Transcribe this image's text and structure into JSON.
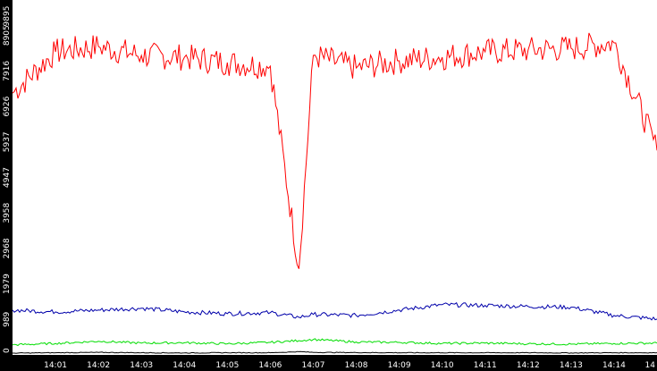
{
  "chart_data": {
    "type": "line",
    "title": "",
    "xlabel": "",
    "ylabel": "",
    "grid": false,
    "legend": "none",
    "background_color": "#000000",
    "plot_background_color": "#ffffff",
    "axis_text_color": "#ffffff",
    "ylim": [
      0,
      9895
    ],
    "yticks": [
      "0",
      "989",
      "1979",
      "2968",
      "3958",
      "4947",
      "5937",
      "6926",
      "7916",
      "8905",
      "9895"
    ],
    "xlim": [
      "14:00",
      "14:15"
    ],
    "xticks": [
      "14:01",
      "14:02",
      "14:03",
      "14:04",
      "14:05",
      "14:06",
      "14:07",
      "14:08",
      "14:09",
      "14:10",
      "14:11",
      "14:12",
      "14:13",
      "14:14",
      "14"
    ],
    "x": [
      "14:00",
      "14:01",
      "14:02",
      "14:03",
      "14:04",
      "14:05",
      "14:06",
      "14:06:40",
      "14:07",
      "14:08",
      "14:09",
      "14:10",
      "14:11",
      "14:12",
      "14:13",
      "14:14",
      "14:15"
    ],
    "series": [
      {
        "color": "#ff0000",
        "values": [
          7300,
          8450,
          8600,
          8350,
          8300,
          8150,
          8050,
          2400,
          8350,
          8000,
          8200,
          8300,
          8450,
          8500,
          8550,
          8700,
          5700
        ]
      },
      {
        "color": "#0000aa",
        "values": [
          1250,
          1200,
          1250,
          1300,
          1200,
          1150,
          1180,
          1050,
          1130,
          1100,
          1250,
          1400,
          1380,
          1350,
          1330,
          1100,
          1000
        ]
      },
      {
        "color": "#00dd00",
        "values": [
          280,
          320,
          380,
          330,
          340,
          310,
          350,
          400,
          430,
          360,
          350,
          320,
          330,
          310,
          300,
          320,
          330
        ]
      },
      {
        "color": "#000000",
        "values": [
          50,
          60,
          70,
          60,
          55,
          60,
          60,
          90,
          70,
          65,
          60,
          60,
          60,
          60,
          55,
          60,
          60
        ]
      }
    ]
  }
}
